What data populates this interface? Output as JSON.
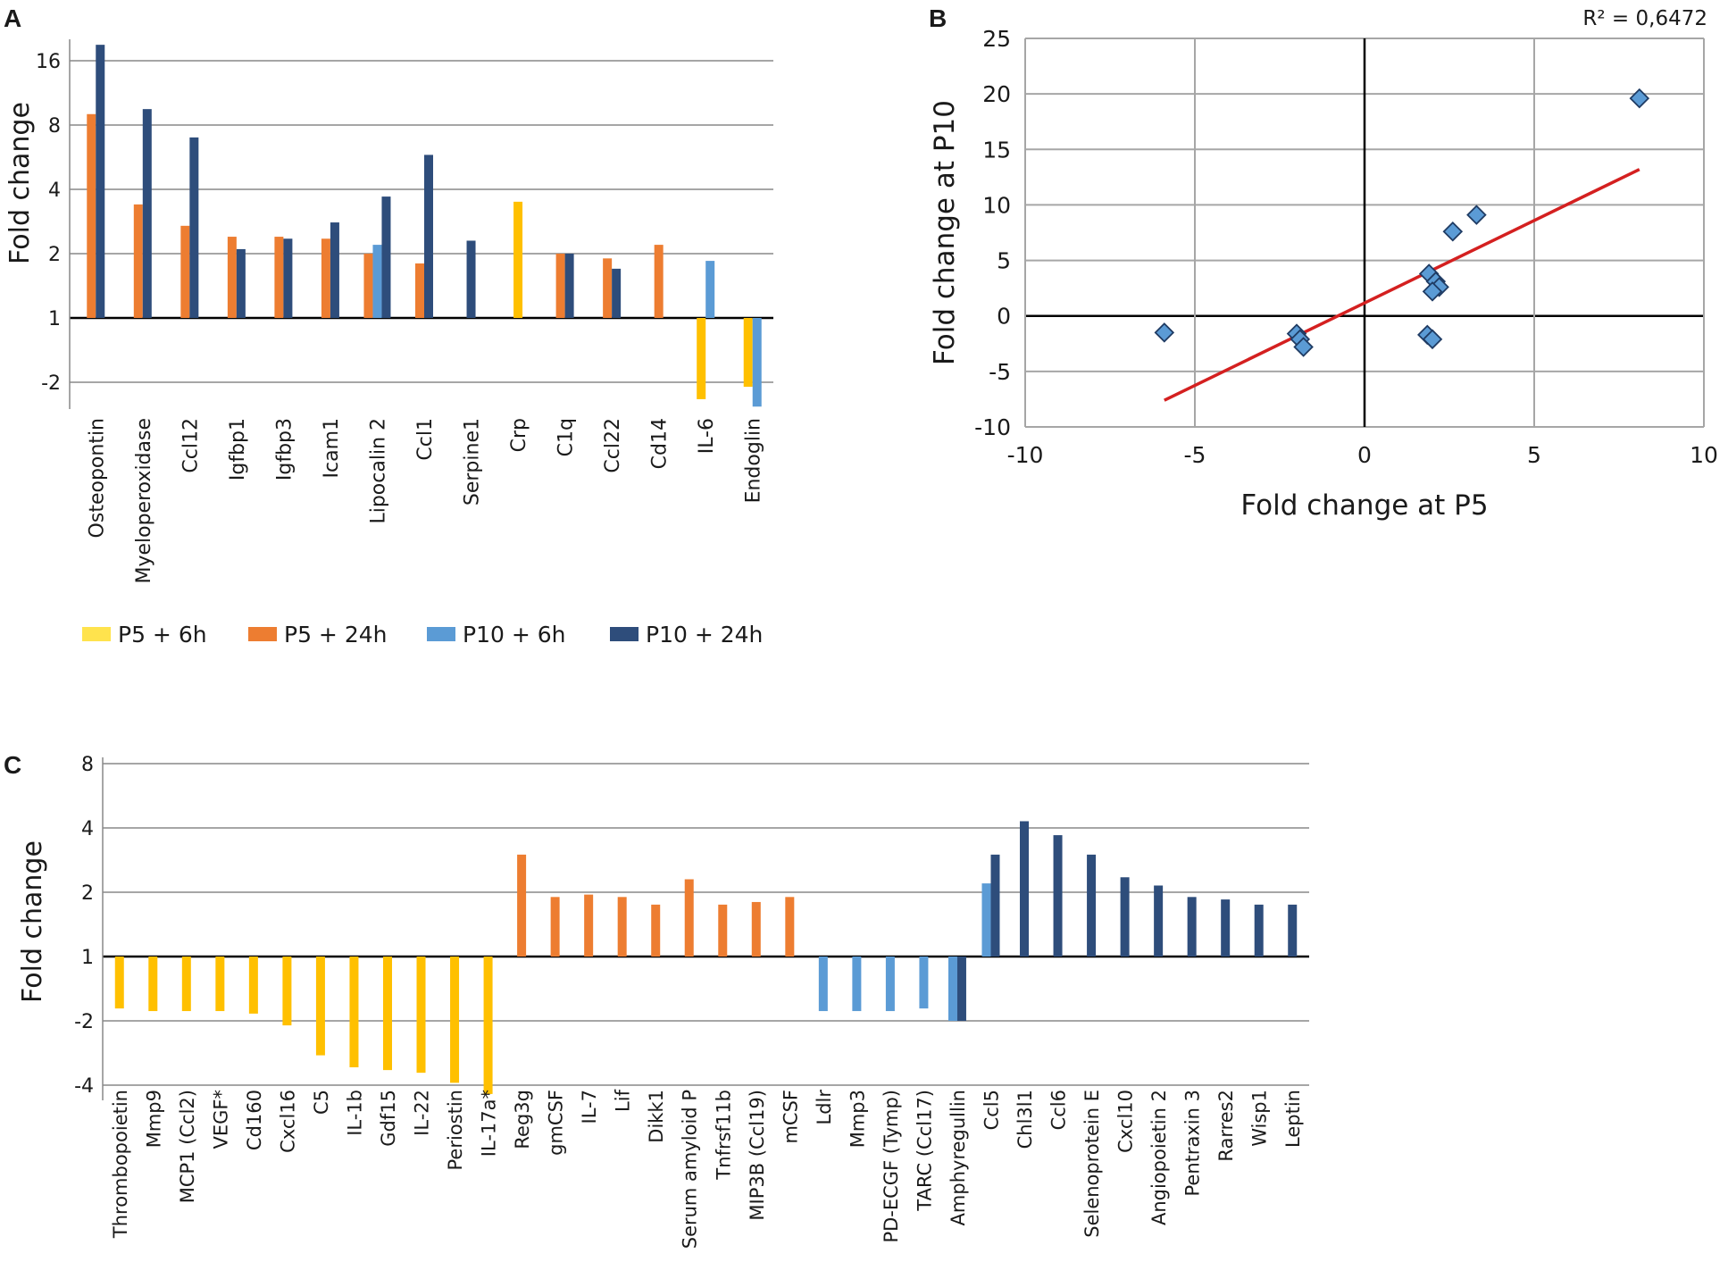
{
  "colors": {
    "p5_6h": "#FFC000",
    "p5_24h": "#ED7D31",
    "p10_6h": "#5B9BD5",
    "p10_24h": "#2E4D7B",
    "trend": "#D42020",
    "marker": "#5B9BD5",
    "grid": "#A6A6A6"
  },
  "legend": [
    {
      "key": "p5_6h",
      "label": "P5 + 6h",
      "color": "#FFE34D"
    },
    {
      "key": "p5_24h",
      "label": "P5 + 24h",
      "color": "#ED7D31"
    },
    {
      "key": "p10_6h",
      "label": "P10 + 6h",
      "color": "#5B9BD5"
    },
    {
      "key": "p10_24h",
      "label": "P10 + 24h",
      "color": "#2E4D7B"
    }
  ],
  "chart_data": [
    {
      "panel": "A",
      "type": "bar",
      "ylabel": "Fold change",
      "scale": "log2 with sign (negative = fold decrease)",
      "yticks": [
        "16",
        "8",
        "4",
        "2",
        "1",
        "-2"
      ],
      "ylim": [
        -2.5,
        20
      ],
      "categories": [
        "Osteopontin",
        "Myeloperoxidase",
        "Ccl12",
        "Igfbp1",
        "Igfbp3",
        "Icam1",
        "Lipocalin 2",
        "Ccl1",
        "Serpine1",
        "Crp",
        "C1q",
        "Ccl22",
        "Cd14",
        "IL-6",
        "Endoglin"
      ],
      "series": [
        {
          "name": "P5 + 6h",
          "key": "p5_6h",
          "values": [
            null,
            null,
            null,
            null,
            null,
            null,
            null,
            null,
            null,
            3.5,
            null,
            null,
            null,
            -2.4,
            -2.1
          ]
        },
        {
          "name": "P5 + 24h",
          "key": "p5_24h",
          "values": [
            9.0,
            3.4,
            2.7,
            2.4,
            2.4,
            2.35,
            2.0,
            1.8,
            null,
            null,
            2.0,
            1.9,
            2.2,
            null,
            null
          ]
        },
        {
          "name": "P10 + 6h",
          "key": "p10_6h",
          "values": [
            null,
            null,
            null,
            null,
            null,
            null,
            2.2,
            null,
            null,
            null,
            null,
            null,
            null,
            1.85,
            -2.6
          ]
        },
        {
          "name": "P10 + 24h",
          "key": "p10_24h",
          "values": [
            19.0,
            9.5,
            7.0,
            2.1,
            2.35,
            2.8,
            3.7,
            5.8,
            2.3,
            null,
            2.0,
            1.7,
            null,
            null,
            null
          ]
        }
      ]
    },
    {
      "panel": "B",
      "type": "scatter",
      "xlabel": "Fold change at P5",
      "ylabel": "Fold change at P10",
      "xlim": [
        -10,
        10
      ],
      "ylim": [
        -10,
        25
      ],
      "xticks": [
        "-10",
        "-5",
        "0",
        "5",
        "10"
      ],
      "yticks": [
        "25",
        "20",
        "15",
        "10",
        "5",
        "0",
        "-5",
        "-10"
      ],
      "r_squared_label": "R² = 0,6472",
      "trendline": {
        "x": [
          -5.9,
          8.1
        ],
        "y": [
          -7.6,
          13.2
        ]
      },
      "points": [
        {
          "x": 8.1,
          "y": 19.6
        },
        {
          "x": 3.3,
          "y": 9.1
        },
        {
          "x": 2.6,
          "y": 7.6
        },
        {
          "x": 1.9,
          "y": 3.8
        },
        {
          "x": 2.1,
          "y": 3.1
        },
        {
          "x": 2.2,
          "y": 2.6
        },
        {
          "x": 2.0,
          "y": 2.2
        },
        {
          "x": 1.85,
          "y": -1.7
        },
        {
          "x": 2.0,
          "y": -2.1
        },
        {
          "x": -2.0,
          "y": -1.6
        },
        {
          "x": -1.9,
          "y": -2.1
        },
        {
          "x": -1.8,
          "y": -2.8
        },
        {
          "x": -5.9,
          "y": -1.5
        }
      ]
    },
    {
      "panel": "C",
      "type": "bar",
      "ylabel": "Fold change",
      "scale": "log2 with sign (negative = fold decrease)",
      "yticks": [
        "8",
        "4",
        "2",
        "1",
        "-2",
        "-4"
      ],
      "ylim": [
        -4.3,
        8
      ],
      "categories": [
        "Thrombopoietin",
        "Mmp9",
        "MCP1 (Ccl2)",
        "VEGF*",
        "Cd160",
        "Cxcl16",
        "C5",
        "IL-1b",
        "Gdf15",
        "IL-22",
        "Periostin",
        "IL-17a*",
        "Reg3g",
        "gmCSF",
        "IL-7",
        "Lif",
        "Dikk1",
        "Serum amyloid P",
        "Tnfrsf11b",
        "MIP3B (Ccl19)",
        "mCSF",
        "Ldlr",
        "Mmp3",
        "PD-ECGF (Tymp)",
        "TARC (Ccl17)",
        "Amphyregullin",
        "Ccl5",
        "Chl3l1",
        "Ccl6",
        "Selenoprotein E",
        "Cxcl10",
        "Angiopoietin 2",
        "Pentraxin 3",
        "Rarres2",
        "Wisp1",
        "Leptin"
      ],
      "series": [
        {
          "name": "P5 + 6h",
          "key": "p5_6h",
          "values": [
            -1.75,
            -1.8,
            -1.8,
            -1.8,
            -1.85,
            -2.1,
            -2.9,
            -3.3,
            -3.4,
            -3.5,
            -3.9,
            -4.4,
            null,
            null,
            null,
            null,
            null,
            null,
            null,
            null,
            null,
            null,
            null,
            null,
            null,
            null,
            null,
            null,
            null,
            null,
            null,
            null,
            null,
            null,
            null,
            null
          ]
        },
        {
          "name": "P5 + 24h",
          "key": "p5_24h",
          "values": [
            null,
            null,
            null,
            null,
            null,
            null,
            null,
            null,
            null,
            null,
            null,
            null,
            3.0,
            1.9,
            1.95,
            1.9,
            1.75,
            2.3,
            1.75,
            1.8,
            1.9,
            null,
            null,
            null,
            null,
            null,
            null,
            null,
            null,
            null,
            null,
            null,
            null,
            null,
            null,
            null
          ]
        },
        {
          "name": "P10 + 6h",
          "key": "p10_6h",
          "values": [
            null,
            null,
            null,
            null,
            null,
            null,
            null,
            null,
            null,
            null,
            null,
            null,
            null,
            null,
            null,
            null,
            null,
            null,
            null,
            null,
            null,
            -1.8,
            -1.8,
            -1.8,
            -1.75,
            -2.0,
            2.2,
            null,
            null,
            null,
            null,
            null,
            null,
            null,
            null,
            null
          ]
        },
        {
          "name": "P10 + 24h",
          "key": "p10_24h",
          "values": [
            null,
            null,
            null,
            null,
            null,
            null,
            null,
            null,
            null,
            null,
            null,
            null,
            null,
            null,
            null,
            null,
            null,
            null,
            null,
            null,
            null,
            null,
            null,
            null,
            null,
            -2.0,
            3.0,
            4.3,
            3.7,
            3.0,
            2.35,
            2.15,
            1.9,
            1.85,
            1.75,
            1.75
          ]
        }
      ]
    }
  ]
}
